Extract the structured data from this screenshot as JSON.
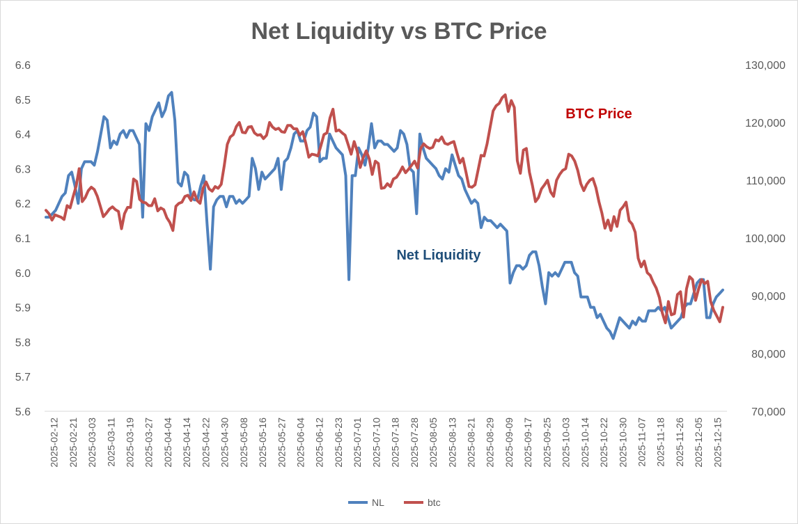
{
  "chart_data": {
    "type": "line",
    "title": "Net Liquidity vs BTC Price",
    "ylim_left": [
      5.6,
      6.6
    ],
    "yticks_left": [
      "6.6",
      "6.5",
      "6.4",
      "6.3",
      "6.2",
      "6.1",
      "6.0",
      "5.9",
      "5.8",
      "5.7",
      "5.6"
    ],
    "ylim_right": [
      70000,
      130000
    ],
    "yticks_right": [
      "130,000",
      "120,000",
      "110,000",
      "100,000",
      "90,000",
      "80,000",
      "70,000"
    ],
    "x_labels": [
      "2025-02-12",
      "2025-02-21",
      "2025-03-03",
      "2025-03-11",
      "2025-03-19",
      "2025-03-27",
      "2025-04-04",
      "2025-04-14",
      "2025-04-22",
      "2025-04-30",
      "2025-05-08",
      "2025-05-16",
      "2025-05-27",
      "2025-06-04",
      "2025-06-12",
      "2025-06-23",
      "2025-07-01",
      "2025-07-10",
      "2025-07-18",
      "2025-07-28",
      "2025-08-05",
      "2025-08-13",
      "2025-08-21",
      "2025-08-29",
      "2025-09-09",
      "2025-09-17",
      "2025-09-25",
      "2025-10-03",
      "2025-10-14",
      "2025-10-22",
      "2025-10-30",
      "2025-11-07",
      "2025-11-18",
      "2025-11-26",
      "2025-12-05",
      "2025-12-15"
    ],
    "grid": false,
    "legend": "bottom",
    "series": [
      {
        "name": "NL",
        "axis": "left",
        "color": "#4F81BD",
        "values": [
          6.16,
          6.16,
          6.17,
          6.18,
          6.2,
          6.22,
          6.23,
          6.28,
          6.29,
          6.25,
          6.2,
          6.3,
          6.32,
          6.32,
          6.32,
          6.31,
          6.35,
          6.4,
          6.45,
          6.44,
          6.36,
          6.38,
          6.37,
          6.4,
          6.41,
          6.39,
          6.41,
          6.41,
          6.39,
          6.37,
          6.16,
          6.43,
          6.41,
          6.45,
          6.47,
          6.49,
          6.45,
          6.47,
          6.51,
          6.52,
          6.44,
          6.26,
          6.25,
          6.29,
          6.28,
          6.22,
          6.21,
          6.21,
          6.25,
          6.28,
          6.14,
          6.01,
          6.19,
          6.21,
          6.22,
          6.22,
          6.19,
          6.22,
          6.22,
          6.2,
          6.21,
          6.2,
          6.21,
          6.22,
          6.33,
          6.3,
          6.24,
          6.29,
          6.27,
          6.28,
          6.29,
          6.3,
          6.33,
          6.24,
          6.32,
          6.33,
          6.36,
          6.4,
          6.41,
          6.38,
          6.38,
          6.41,
          6.42,
          6.46,
          6.45,
          6.32,
          6.33,
          6.33,
          6.4,
          6.38,
          6.36,
          6.35,
          6.34,
          6.28,
          5.98,
          6.28,
          6.28,
          6.36,
          6.34,
          6.31,
          6.36,
          6.43,
          6.36,
          6.38,
          6.38,
          6.37,
          6.37,
          6.36,
          6.35,
          6.36,
          6.41,
          6.4,
          6.37,
          6.3,
          6.29,
          6.17,
          6.4,
          6.36,
          6.33,
          6.32,
          6.31,
          6.3,
          6.28,
          6.27,
          6.3,
          6.29,
          6.34,
          6.31,
          6.28,
          6.27,
          6.24,
          6.22,
          6.2,
          6.21,
          6.2,
          6.13,
          6.16,
          6.15,
          6.15,
          6.14,
          6.13,
          6.14,
          6.13,
          6.12,
          5.97,
          6.0,
          6.02,
          6.02,
          6.01,
          6.02,
          6.05,
          6.06,
          6.06,
          6.02,
          5.96,
          5.91,
          6.0,
          5.99,
          6.0,
          5.99,
          6.01,
          6.03,
          6.03,
          6.03,
          6.0,
          5.99,
          5.93,
          5.93,
          5.93,
          5.9,
          5.9,
          5.87,
          5.88,
          5.86,
          5.84,
          5.83,
          5.81,
          5.84,
          5.87,
          5.86,
          5.85,
          5.84,
          5.86,
          5.85,
          5.87,
          5.86,
          5.86,
          5.89,
          5.89,
          5.89,
          5.9,
          5.89,
          5.9,
          5.87,
          5.84,
          5.85,
          5.86,
          5.87,
          5.9,
          5.91,
          5.91,
          5.94,
          5.97,
          5.98,
          5.98,
          5.87,
          5.87,
          5.91,
          5.93,
          5.94,
          5.95
        ]
      },
      {
        "name": "btc",
        "axis": "right",
        "color": "#C0504D",
        "values": [
          104800,
          104200,
          103100,
          104000,
          103800,
          103600,
          103200,
          105600,
          105200,
          107200,
          109000,
          112000,
          106300,
          107000,
          108200,
          108800,
          108400,
          107200,
          105500,
          103700,
          104300,
          105000,
          105400,
          104900,
          104600,
          101600,
          104200,
          105300,
          105300,
          110200,
          109800,
          106700,
          106200,
          106100,
          105600,
          105600,
          106800,
          104700,
          105200,
          104900,
          103500,
          102700,
          101300,
          105500,
          106000,
          106200,
          107200,
          107400,
          106500,
          108000,
          106500,
          106000,
          108600,
          109700,
          108500,
          108100,
          108900,
          108600,
          109300,
          112500,
          116200,
          117500,
          117900,
          119300,
          120000,
          118300,
          118200,
          119200,
          119300,
          118200,
          117800,
          117900,
          117200,
          117800,
          120000,
          119200,
          118800,
          119000,
          118400,
          118300,
          119500,
          119500,
          118900,
          118900,
          117800,
          118400,
          116400,
          114000,
          114500,
          114400,
          114200,
          116000,
          117900,
          118200,
          120800,
          122300,
          118500,
          118700,
          118200,
          117800,
          116200,
          114500,
          116700,
          115100,
          112200,
          113900,
          115100,
          113700,
          111000,
          113300,
          112900,
          108600,
          108700,
          109400,
          108900,
          110200,
          110500,
          111300,
          112300,
          111300,
          111900,
          112600,
          113300,
          112100,
          115500,
          116300,
          115800,
          115500,
          115700,
          117000,
          116800,
          117500,
          116400,
          116200,
          116500,
          116700,
          114800,
          113000,
          113800,
          111400,
          108900,
          108800,
          109200,
          111700,
          114300,
          114200,
          116300,
          119200,
          122000,
          122900,
          123300,
          124300,
          124800,
          121900,
          123800,
          122600,
          113400,
          111200,
          115200,
          115500,
          111400,
          109100,
          106300,
          107000,
          108500,
          109200,
          110000,
          108000,
          107200,
          110000,
          111000,
          111700,
          112000,
          114500,
          114200,
          113300,
          111700,
          109400,
          108200,
          109300,
          110000,
          110300,
          108700,
          106300,
          104300,
          101700,
          103100,
          101300,
          103700,
          102000,
          104800,
          105400,
          106200,
          103000,
          102400,
          101000,
          96500,
          95000,
          96000,
          94000,
          93500,
          92300,
          91300,
          89700,
          87000,
          85300,
          89000,
          86700,
          86900,
          90200,
          90700,
          86300,
          91200,
          93300,
          92800,
          89200,
          91200,
          92800,
          92100,
          92500,
          89000,
          87500,
          86500,
          85500,
          88000
        ]
      }
    ],
    "annotations": [
      {
        "text": "BTC Price",
        "color": "#C00000"
      },
      {
        "text": "Net Liquidity",
        "color": "#1F4E79"
      }
    ]
  }
}
